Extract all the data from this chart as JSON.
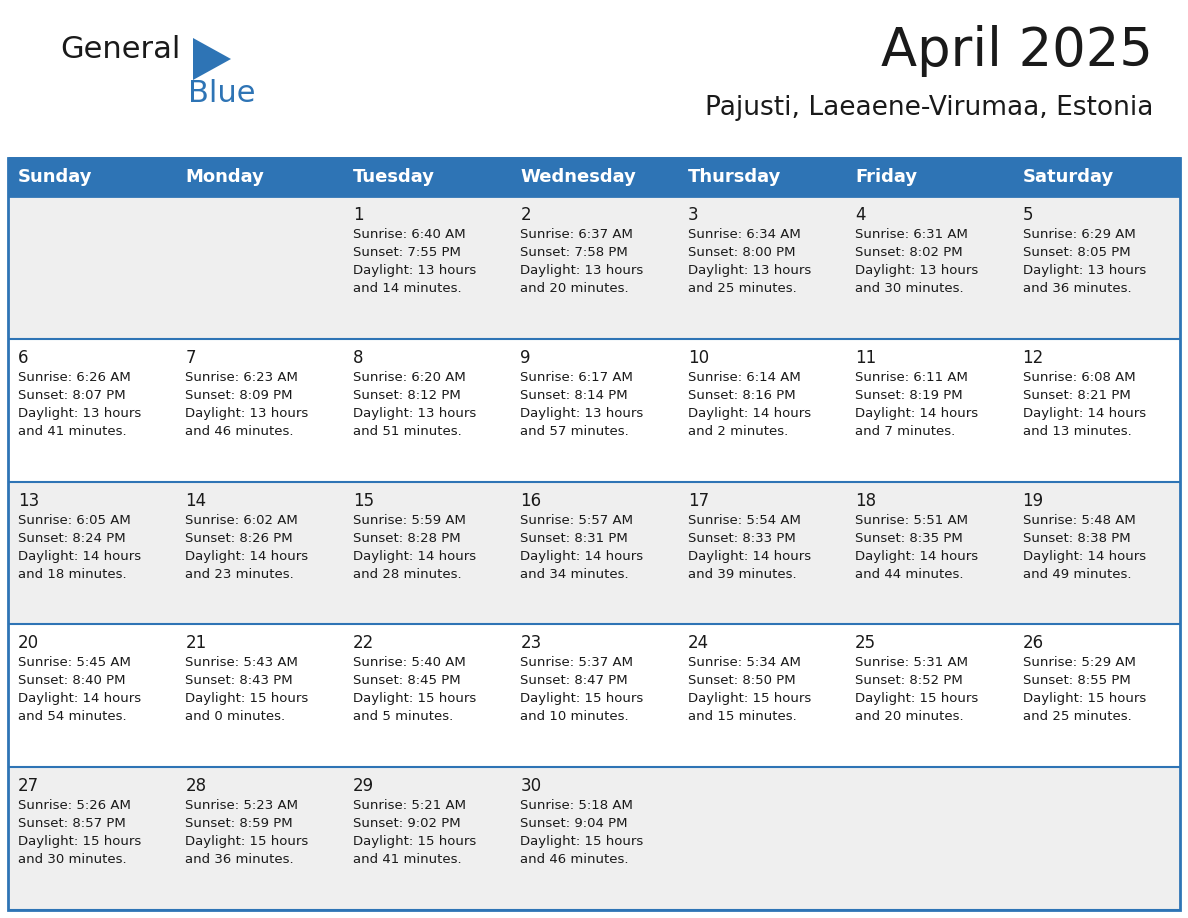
{
  "title": "April 2025",
  "subtitle": "Pajusti, Laeaene-Virumaa, Estonia",
  "header_bg": "#2E74B5",
  "header_text_color": "#FFFFFF",
  "row_bg_odd": "#EFEFEF",
  "row_bg_even": "#FFFFFF",
  "border_color": "#2E74B5",
  "separator_color": "#2E74B5",
  "day_headers": [
    "Sunday",
    "Monday",
    "Tuesday",
    "Wednesday",
    "Thursday",
    "Friday",
    "Saturday"
  ],
  "days": [
    {
      "day": 1,
      "col": 2,
      "row": 0,
      "sunrise": "6:40 AM",
      "sunset": "7:55 PM",
      "daylight_hours": 13,
      "daylight_minutes": 14
    },
    {
      "day": 2,
      "col": 3,
      "row": 0,
      "sunrise": "6:37 AM",
      "sunset": "7:58 PM",
      "daylight_hours": 13,
      "daylight_minutes": 20
    },
    {
      "day": 3,
      "col": 4,
      "row": 0,
      "sunrise": "6:34 AM",
      "sunset": "8:00 PM",
      "daylight_hours": 13,
      "daylight_minutes": 25
    },
    {
      "day": 4,
      "col": 5,
      "row": 0,
      "sunrise": "6:31 AM",
      "sunset": "8:02 PM",
      "daylight_hours": 13,
      "daylight_minutes": 30
    },
    {
      "day": 5,
      "col": 6,
      "row": 0,
      "sunrise": "6:29 AM",
      "sunset": "8:05 PM",
      "daylight_hours": 13,
      "daylight_minutes": 36
    },
    {
      "day": 6,
      "col": 0,
      "row": 1,
      "sunrise": "6:26 AM",
      "sunset": "8:07 PM",
      "daylight_hours": 13,
      "daylight_minutes": 41
    },
    {
      "day": 7,
      "col": 1,
      "row": 1,
      "sunrise": "6:23 AM",
      "sunset": "8:09 PM",
      "daylight_hours": 13,
      "daylight_minutes": 46
    },
    {
      "day": 8,
      "col": 2,
      "row": 1,
      "sunrise": "6:20 AM",
      "sunset": "8:12 PM",
      "daylight_hours": 13,
      "daylight_minutes": 51
    },
    {
      "day": 9,
      "col": 3,
      "row": 1,
      "sunrise": "6:17 AM",
      "sunset": "8:14 PM",
      "daylight_hours": 13,
      "daylight_minutes": 57
    },
    {
      "day": 10,
      "col": 4,
      "row": 1,
      "sunrise": "6:14 AM",
      "sunset": "8:16 PM",
      "daylight_hours": 14,
      "daylight_minutes": 2
    },
    {
      "day": 11,
      "col": 5,
      "row": 1,
      "sunrise": "6:11 AM",
      "sunset": "8:19 PM",
      "daylight_hours": 14,
      "daylight_minutes": 7
    },
    {
      "day": 12,
      "col": 6,
      "row": 1,
      "sunrise": "6:08 AM",
      "sunset": "8:21 PM",
      "daylight_hours": 14,
      "daylight_minutes": 13
    },
    {
      "day": 13,
      "col": 0,
      "row": 2,
      "sunrise": "6:05 AM",
      "sunset": "8:24 PM",
      "daylight_hours": 14,
      "daylight_minutes": 18
    },
    {
      "day": 14,
      "col": 1,
      "row": 2,
      "sunrise": "6:02 AM",
      "sunset": "8:26 PM",
      "daylight_hours": 14,
      "daylight_minutes": 23
    },
    {
      "day": 15,
      "col": 2,
      "row": 2,
      "sunrise": "5:59 AM",
      "sunset": "8:28 PM",
      "daylight_hours": 14,
      "daylight_minutes": 28
    },
    {
      "day": 16,
      "col": 3,
      "row": 2,
      "sunrise": "5:57 AM",
      "sunset": "8:31 PM",
      "daylight_hours": 14,
      "daylight_minutes": 34
    },
    {
      "day": 17,
      "col": 4,
      "row": 2,
      "sunrise": "5:54 AM",
      "sunset": "8:33 PM",
      "daylight_hours": 14,
      "daylight_minutes": 39
    },
    {
      "day": 18,
      "col": 5,
      "row": 2,
      "sunrise": "5:51 AM",
      "sunset": "8:35 PM",
      "daylight_hours": 14,
      "daylight_minutes": 44
    },
    {
      "day": 19,
      "col": 6,
      "row": 2,
      "sunrise": "5:48 AM",
      "sunset": "8:38 PM",
      "daylight_hours": 14,
      "daylight_minutes": 49
    },
    {
      "day": 20,
      "col": 0,
      "row": 3,
      "sunrise": "5:45 AM",
      "sunset": "8:40 PM",
      "daylight_hours": 14,
      "daylight_minutes": 54
    },
    {
      "day": 21,
      "col": 1,
      "row": 3,
      "sunrise": "5:43 AM",
      "sunset": "8:43 PM",
      "daylight_hours": 15,
      "daylight_minutes": 0
    },
    {
      "day": 22,
      "col": 2,
      "row": 3,
      "sunrise": "5:40 AM",
      "sunset": "8:45 PM",
      "daylight_hours": 15,
      "daylight_minutes": 5
    },
    {
      "day": 23,
      "col": 3,
      "row": 3,
      "sunrise": "5:37 AM",
      "sunset": "8:47 PM",
      "daylight_hours": 15,
      "daylight_minutes": 10
    },
    {
      "day": 24,
      "col": 4,
      "row": 3,
      "sunrise": "5:34 AM",
      "sunset": "8:50 PM",
      "daylight_hours": 15,
      "daylight_minutes": 15
    },
    {
      "day": 25,
      "col": 5,
      "row": 3,
      "sunrise": "5:31 AM",
      "sunset": "8:52 PM",
      "daylight_hours": 15,
      "daylight_minutes": 20
    },
    {
      "day": 26,
      "col": 6,
      "row": 3,
      "sunrise": "5:29 AM",
      "sunset": "8:55 PM",
      "daylight_hours": 15,
      "daylight_minutes": 25
    },
    {
      "day": 27,
      "col": 0,
      "row": 4,
      "sunrise": "5:26 AM",
      "sunset": "8:57 PM",
      "daylight_hours": 15,
      "daylight_minutes": 30
    },
    {
      "day": 28,
      "col": 1,
      "row": 4,
      "sunrise": "5:23 AM",
      "sunset": "8:59 PM",
      "daylight_hours": 15,
      "daylight_minutes": 36
    },
    {
      "day": 29,
      "col": 2,
      "row": 4,
      "sunrise": "5:21 AM",
      "sunset": "9:02 PM",
      "daylight_hours": 15,
      "daylight_minutes": 41
    },
    {
      "day": 30,
      "col": 3,
      "row": 4,
      "sunrise": "5:18 AM",
      "sunset": "9:04 PM",
      "daylight_hours": 15,
      "daylight_minutes": 46
    }
  ],
  "num_rows": 5,
  "num_cols": 7,
  "title_fontsize": 36,
  "subtitle_fontsize": 18,
  "day_header_fontsize": 13,
  "day_num_fontsize": 12,
  "day_info_fontsize": 9.5,
  "logo_text_general": "General",
  "logo_text_blue": "Blue",
  "logo_color_general": "#1a1a1a",
  "logo_color_blue": "#2E74B5",
  "logo_triangle_color": "#2E74B5"
}
